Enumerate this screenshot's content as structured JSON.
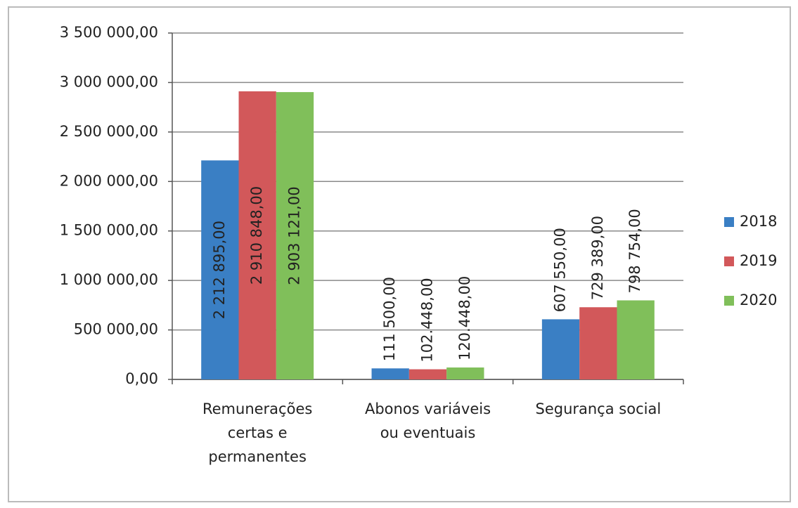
{
  "chart_data": {
    "type": "bar",
    "categories": [
      "Remunerações certas e permanentes",
      "Abonos variáveis ou eventuais",
      "Segurança social"
    ],
    "series": [
      {
        "name": "2018",
        "color": "#3a7fc4",
        "values": [
          2212895,
          111500,
          607550
        ],
        "value_labels": [
          "2 212 895,00",
          "111 500,00",
          "607 550,00"
        ]
      },
      {
        "name": "2019",
        "color": "#d2585a",
        "values": [
          2910848,
          102448,
          729389
        ],
        "value_labels": [
          "2 910 848,00",
          "102.448,00",
          "729 389,00"
        ]
      },
      {
        "name": "2020",
        "color": "#80bf5a",
        "values": [
          2903121,
          120448,
          798754
        ],
        "value_labels": [
          "2 903 121,00",
          "120.448,00",
          "798 754,00"
        ]
      }
    ],
    "ylim": [
      0,
      3500000
    ],
    "yticks": [
      {
        "value": 0,
        "label": "0,00"
      },
      {
        "value": 500000,
        "label": "500 000,00"
      },
      {
        "value": 1000000,
        "label": "1 000 000,00"
      },
      {
        "value": 1500000,
        "label": "1 500 000,00"
      },
      {
        "value": 2000000,
        "label": "2 000 000,00"
      },
      {
        "value": 2500000,
        "label": "2 500 000,00"
      },
      {
        "value": 3000000,
        "label": "3 000 000,00"
      },
      {
        "value": 3500000,
        "label": "3 500 000,00"
      }
    ],
    "grid": true,
    "legend": "right"
  }
}
